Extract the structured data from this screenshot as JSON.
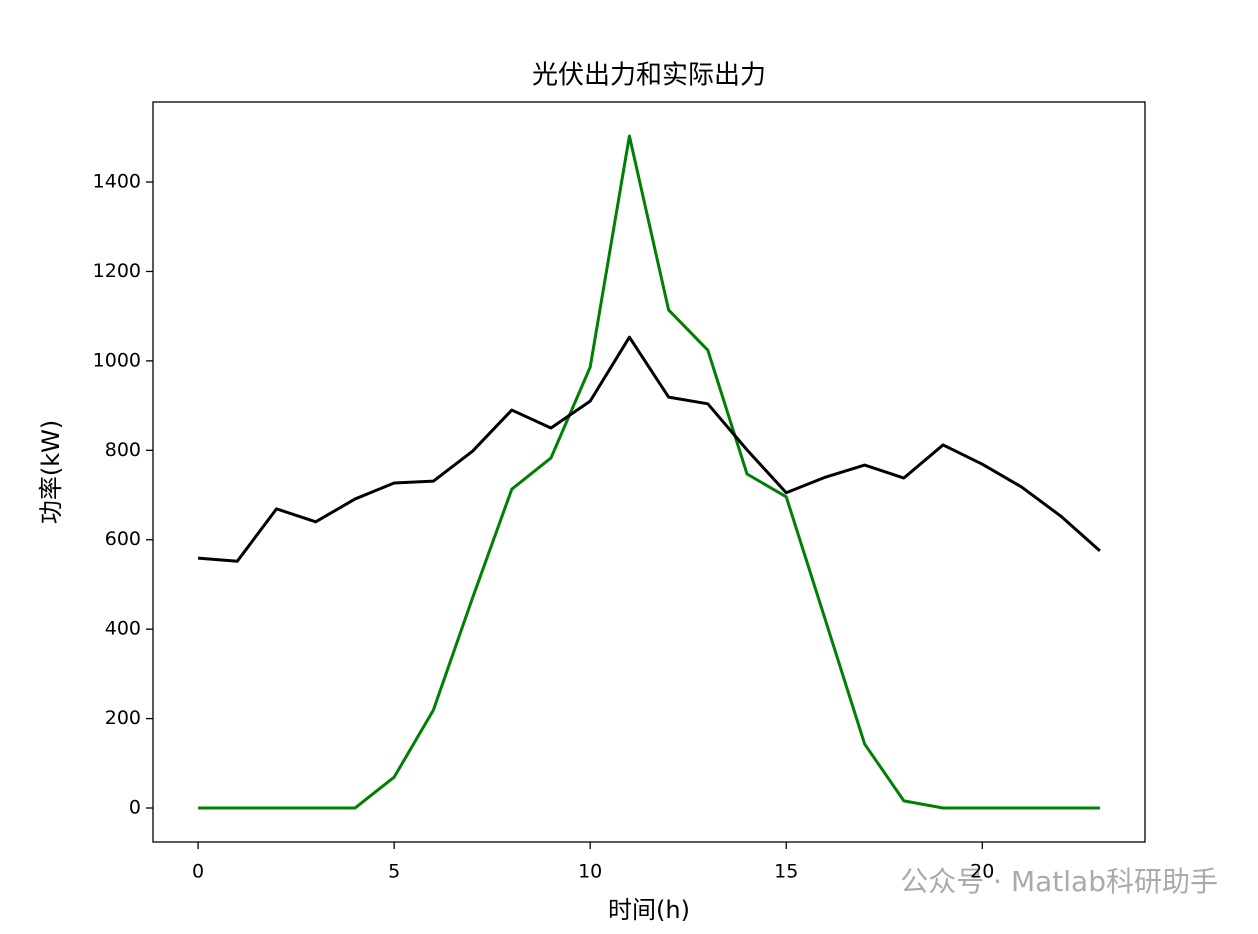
{
  "chart_data": {
    "type": "line",
    "title": "光伏出力和实际出力",
    "xlabel": "时间(h)",
    "ylabel": "功率(kW)",
    "watermark": "公众号 · Matlab科研助手",
    "x": [
      0,
      1,
      2,
      3,
      4,
      5,
      6,
      7,
      8,
      9,
      10,
      11,
      12,
      13,
      14,
      15,
      16,
      17,
      18,
      19,
      20,
      21,
      22,
      23
    ],
    "series": [
      {
        "color": "#008000",
        "values": [
          0,
          0,
          0,
          0,
          0,
          69,
          219,
          470,
          713,
          783,
          986,
          1503,
          1114,
          1024,
          747,
          696,
          420,
          143,
          16,
          0,
          0,
          0,
          0,
          0
        ]
      },
      {
        "color": "#000000",
        "values": [
          559,
          552,
          669,
          640,
          691,
          727,
          731,
          798,
          890,
          850,
          910,
          1053,
          919,
          904,
          801,
          705,
          740,
          767,
          738,
          812,
          769,
          718,
          653,
          575
        ]
      }
    ],
    "xlim": [
      -1.15,
      24.15
    ],
    "xticks": [
      0,
      5,
      10,
      15,
      20
    ],
    "ylim": [
      -76,
      1579
    ],
    "yticks": [
      0,
      200,
      400,
      600,
      800,
      1000,
      1200,
      1400
    ],
    "grid": false
  }
}
